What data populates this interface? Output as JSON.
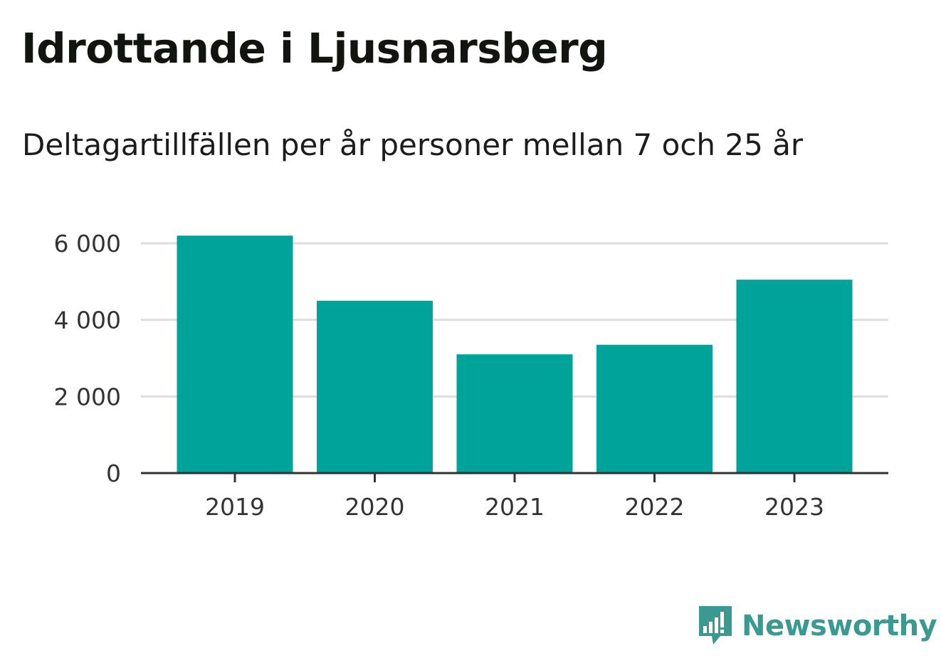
{
  "title": "Idrottande i Ljusnarsberg",
  "subtitle": "Deltagartillfällen per år personer mellan 7 och 25 år",
  "brand": {
    "name": "Newsworthy",
    "icon": "newsworthy-logo-icon",
    "color": "#3a9a92"
  },
  "colors": {
    "bar": "#00a39a",
    "grid": "#dddddd",
    "axis": "#333333"
  },
  "chart_data": {
    "type": "bar",
    "categories": [
      "2019",
      "2020",
      "2021",
      "2022",
      "2023"
    ],
    "values": [
      6200,
      4500,
      3100,
      3350,
      5050
    ],
    "ylim": [
      0,
      6000
    ],
    "yticks": [
      0,
      2000,
      4000,
      6000
    ],
    "ytick_labels": [
      "0",
      "2 000",
      "4 000",
      "6 000"
    ],
    "xlabel": "",
    "ylabel": "",
    "grid": true
  }
}
